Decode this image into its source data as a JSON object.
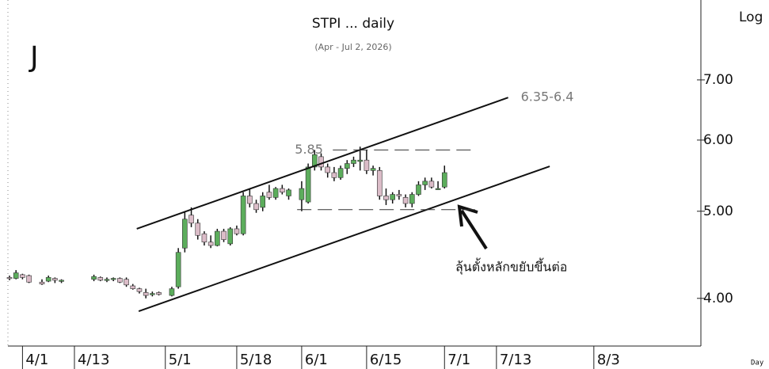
{
  "chart_data": {
    "type": "candlestick",
    "title": "STPI ... daily",
    "subtitle": "(Apr - Jul 2, 2026)",
    "symbol": "J",
    "scale_label": "Log",
    "period_label": "Day",
    "log_scale": true,
    "up_color": "#5cad5c",
    "down_color": "#dbbcc8",
    "xlim": [
      0,
      106
    ],
    "ylim": [
      3.54,
      8.59
    ],
    "yticks": [
      {
        "value": 4,
        "label": "4.00"
      },
      {
        "value": 5,
        "label": "5.00"
      },
      {
        "value": 6,
        "label": "6.00"
      },
      {
        "value": 7,
        "label": "7.00"
      }
    ],
    "xticks": [
      {
        "value": 2,
        "label": "4/1"
      },
      {
        "value": 10,
        "label": "4/13"
      },
      {
        "value": 24,
        "label": "5/1"
      },
      {
        "value": 35,
        "label": "5/18"
      },
      {
        "value": 45,
        "label": "6/1"
      },
      {
        "value": 55,
        "label": "6/15"
      },
      {
        "value": 67,
        "label": "7/1"
      },
      {
        "value": 75,
        "label": "7/13"
      },
      {
        "value": 90,
        "label": "8/3"
      }
    ],
    "x": [
      0,
      1,
      2,
      3,
      5,
      6,
      7,
      8,
      13,
      14,
      15,
      16,
      17,
      18,
      19,
      20,
      21,
      22,
      23,
      25,
      26,
      27,
      28,
      29,
      30,
      31,
      32,
      33,
      34,
      35,
      36,
      37,
      38,
      39,
      40,
      41,
      42,
      43,
      45,
      46,
      47,
      48,
      49,
      50,
      51,
      52,
      53,
      54,
      55,
      56,
      57,
      58,
      59,
      60,
      61,
      62,
      63,
      64,
      65,
      66,
      67
    ],
    "open": [
      4.22,
      4.21,
      4.25,
      4.24,
      4.17,
      4.18,
      4.21,
      4.19,
      4.2,
      4.22,
      4.19,
      4.2,
      4.21,
      4.2,
      4.13,
      4.1,
      4.06,
      4.04,
      4.06,
      4.03,
      4.12,
      4.55,
      4.95,
      4.85,
      4.72,
      4.62,
      4.58,
      4.75,
      4.6,
      4.78,
      4.72,
      5.2,
      5.1,
      5.05,
      5.25,
      5.18,
      5.3,
      5.2,
      5.15,
      5.12,
      5.6,
      5.75,
      5.6,
      5.52,
      5.45,
      5.58,
      5.65,
      5.68,
      5.7,
      5.55,
      5.55,
      5.2,
      5.15,
      5.22,
      5.18,
      5.1,
      5.22,
      5.35,
      5.4,
      5.3,
      5.32
    ],
    "high": [
      4.24,
      4.3,
      4.26,
      4.25,
      4.2,
      4.24,
      4.22,
      4.2,
      4.25,
      4.23,
      4.22,
      4.22,
      4.22,
      4.22,
      4.15,
      4.11,
      4.1,
      4.07,
      4.07,
      4.12,
      4.55,
      5.0,
      5.05,
      4.9,
      4.75,
      4.7,
      4.78,
      4.78,
      4.8,
      4.82,
      5.25,
      5.3,
      5.15,
      5.25,
      5.35,
      5.32,
      5.35,
      5.3,
      5.4,
      5.65,
      5.85,
      5.8,
      5.65,
      5.6,
      5.62,
      5.7,
      5.75,
      5.9,
      5.85,
      5.62,
      5.6,
      5.3,
      5.25,
      5.28,
      5.22,
      5.25,
      5.4,
      5.45,
      5.45,
      5.4,
      5.62
    ],
    "low": [
      4.19,
      4.2,
      4.2,
      4.16,
      4.14,
      4.17,
      4.16,
      4.16,
      4.18,
      4.18,
      4.17,
      4.18,
      4.16,
      4.12,
      4.09,
      4.05,
      4.0,
      4.02,
      4.03,
      4.02,
      4.1,
      4.5,
      4.8,
      4.65,
      4.58,
      4.55,
      4.57,
      4.62,
      4.58,
      4.7,
      4.7,
      5.05,
      4.98,
      5.0,
      5.15,
      5.15,
      5.22,
      5.15,
      5.0,
      5.1,
      5.55,
      5.55,
      5.45,
      5.4,
      5.42,
      5.5,
      5.6,
      5.55,
      5.5,
      5.48,
      5.15,
      5.08,
      5.1,
      5.15,
      5.05,
      5.05,
      5.2,
      5.28,
      5.3,
      5.28,
      5.3
    ],
    "close": [
      4.21,
      4.27,
      4.22,
      4.17,
      4.15,
      4.22,
      4.19,
      4.19,
      4.23,
      4.19,
      4.2,
      4.21,
      4.17,
      4.14,
      4.1,
      4.07,
      4.03,
      4.05,
      4.04,
      4.1,
      4.5,
      4.9,
      4.85,
      4.7,
      4.62,
      4.58,
      4.75,
      4.65,
      4.78,
      4.72,
      5.2,
      5.1,
      5.02,
      5.2,
      5.18,
      5.3,
      5.25,
      5.28,
      5.3,
      5.6,
      5.78,
      5.6,
      5.52,
      5.45,
      5.58,
      5.65,
      5.7,
      5.7,
      5.55,
      5.58,
      5.2,
      5.15,
      5.22,
      5.2,
      5.1,
      5.22,
      5.35,
      5.4,
      5.32,
      5.3,
      5.52
    ],
    "trend_lines": [
      {
        "x": [
          19.6,
          76.8
        ],
        "y": [
          4.78,
          6.69
        ],
        "label": "6.35-6.4"
      },
      {
        "x": [
          19.9,
          83.2
        ],
        "y": [
          3.87,
          5.61
        ]
      }
    ],
    "levels": [
      {
        "x": [
          49.8,
          71.7
        ],
        "y": 5.85,
        "label": "5.85"
      },
      {
        "x": [
          44.3,
          71.7
        ],
        "y": 5.02
      }
    ],
    "annotation": "ลุ้นตั้งหลักขยับขึ้นต่อ"
  }
}
